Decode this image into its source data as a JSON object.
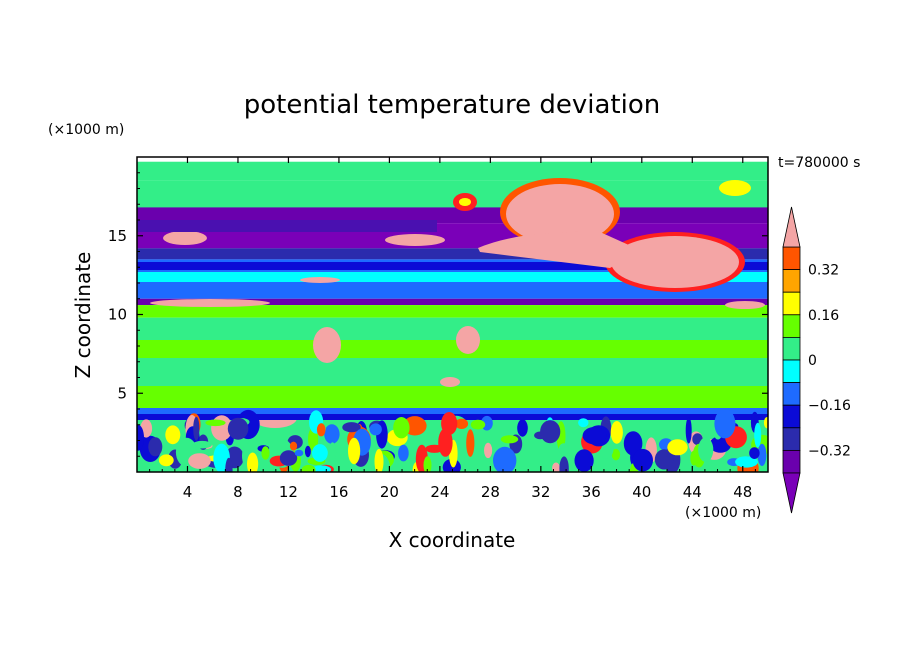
{
  "chart_data": {
    "type": "heatmap",
    "title": "potential temperature deviation",
    "xlabel": "X coordinate",
    "ylabel": "Z coordinate",
    "x_unit": "(×1000 m)",
    "y_unit": "(×1000 m)",
    "time_label": "t=780000 s",
    "xlim": [
      0,
      50
    ],
    "ylim": [
      0,
      20
    ],
    "x_ticks": [
      "4",
      "8",
      "12",
      "16",
      "20",
      "24",
      "28",
      "32",
      "36",
      "40",
      "44",
      "48"
    ],
    "y_ticks": [
      "5",
      "10",
      "15"
    ],
    "colorbar": {
      "levels": [
        -0.4,
        -0.32,
        -0.24,
        -0.16,
        -0.08,
        0,
        0.08,
        0.16,
        0.24,
        0.32,
        0.4
      ],
      "tick_labels": [
        "0.32",
        "0.16",
        "0",
        "−0.16",
        "−0.32"
      ],
      "tick_values": [
        0.32,
        0.16,
        0,
        -0.16,
        -0.32
      ],
      "colors": [
        "#7a00b8",
        "#6a00ad",
        "#2b2bad",
        "#0b0bd6",
        "#1e6bff",
        "#00ffff",
        "#33ee88",
        "#66ff00",
        "#ffff00",
        "#ffa500",
        "#ff5500",
        "#ff2020",
        "#f4a5a5"
      ],
      "extend": "both"
    },
    "layers": [
      {
        "z": [
          18.5,
          19.7
        ],
        "value": 0.05
      },
      {
        "z": [
          16.2,
          18.5
        ],
        "value": 0.02
      },
      {
        "z": [
          15.8,
          16.8
        ],
        "value": -0.36
      },
      {
        "z": [
          14.2,
          15.8
        ],
        "value": -0.42
      },
      {
        "z": [
          13.5,
          14.2
        ],
        "value": -0.28
      },
      {
        "z": [
          12.0,
          13.5
        ],
        "value": -0.12
      },
      {
        "z": [
          11.0,
          12.0
        ],
        "value": -0.14
      },
      {
        "z": [
          10.6,
          11.0
        ],
        "value": -0.36
      },
      {
        "z": [
          9.8,
          10.6
        ],
        "value": 0.1
      },
      {
        "z": [
          4.0,
          9.8
        ],
        "value": 0.05
      },
      {
        "z": [
          3.4,
          4.0
        ],
        "value": -0.3
      },
      {
        "z": [
          0.0,
          3.4
        ],
        "value": 0.0
      }
    ]
  }
}
